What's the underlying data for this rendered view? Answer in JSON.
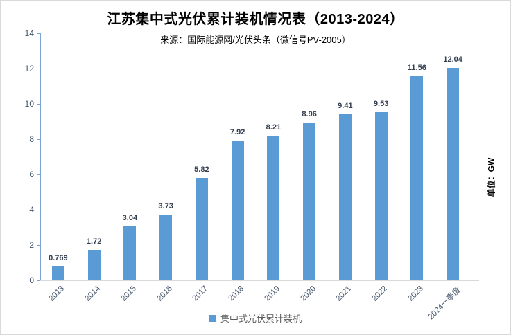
{
  "header": {
    "title": "江苏集中式光伏累计装机情况表（2013-2024）",
    "subtitle": "来源：国际能源网/光伏头条（微信号PV-2005）"
  },
  "unit_axis_title": "单位：GW",
  "legend": {
    "label": "集中式光伏累计装机",
    "swatch_color": "#5b9bd5"
  },
  "colors": {
    "bar": "#5b9bd5",
    "y_axis_line": "#7ca4d6",
    "x_axis_line": "#d9d9d9",
    "axis_label": "#44546a",
    "value_label": "#333f50",
    "legend_text": "#595959",
    "border": "#d9d9d9"
  },
  "chart_data": {
    "type": "bar",
    "title": "江苏集中式光伏累计装机情况表（2013-2024）",
    "subtitle": "来源：国际能源网/光伏头条（微信号PV-2005）",
    "categories": [
      "2013",
      "2014",
      "2015",
      "2016",
      "2017",
      "2018",
      "2019",
      "2020",
      "2021",
      "2022",
      "2023",
      "2024一季度"
    ],
    "values": [
      0.769,
      1.72,
      3.04,
      3.73,
      5.82,
      7.92,
      8.21,
      8.96,
      9.41,
      9.53,
      11.56,
      12.04
    ],
    "value_labels": [
      "0.769",
      "1.72",
      "3.04",
      "3.73",
      "5.82",
      "7.92",
      "8.21",
      "8.96",
      "9.41",
      "9.53",
      "11.56",
      "12.04"
    ],
    "series_name": "集中式光伏累计装机",
    "xlabel": "",
    "ylabel": "单位：GW",
    "ylim": [
      0,
      14
    ],
    "yticks": [
      0,
      2,
      4,
      6,
      8,
      10,
      12,
      14
    ],
    "grid": false,
    "legend_position": "bottom",
    "data_labels_shown": true
  }
}
